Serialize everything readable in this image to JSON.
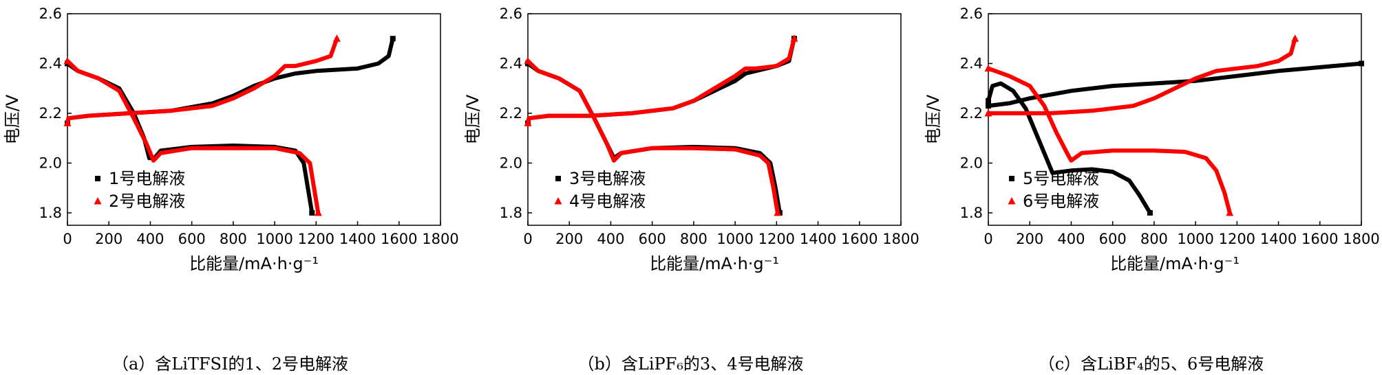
{
  "chart_data": [
    {
      "type": "line",
      "caption": "（a）含LiTFSI的1、2号电解液",
      "xlabel": "比能量/mA·h·g⁻¹",
      "ylabel": "电压/V",
      "xlim": [
        0,
        1800
      ],
      "ylim": [
        1.75,
        2.6
      ],
      "xticks": [
        "0",
        "200",
        "400",
        "600",
        "800",
        "1000",
        "1200",
        "1400",
        "1600",
        "1800"
      ],
      "yticks": [
        "1.8",
        "2.0",
        "2.2",
        "2.4",
        "2.6"
      ],
      "legend_position": "lower-left",
      "series": [
        {
          "name": "1号电解液",
          "color": "#000000",
          "marker": "square",
          "discharge": [
            [
              0,
              2.4
            ],
            [
              50,
              2.37
            ],
            [
              150,
              2.34
            ],
            [
              250,
              2.3
            ],
            [
              320,
              2.2
            ],
            [
              370,
              2.1
            ],
            [
              395,
              2.02
            ],
            [
              420,
              2.02
            ],
            [
              450,
              2.05
            ],
            [
              600,
              2.065
            ],
            [
              800,
              2.07
            ],
            [
              1000,
              2.065
            ],
            [
              1100,
              2.05
            ],
            [
              1140,
              2.0
            ],
            [
              1160,
              1.9
            ],
            [
              1180,
              1.8
            ]
          ],
          "charge": [
            [
              0,
              2.16
            ],
            [
              5,
              2.18
            ],
            [
              100,
              2.19
            ],
            [
              300,
              2.2
            ],
            [
              500,
              2.21
            ],
            [
              700,
              2.24
            ],
            [
              800,
              2.27
            ],
            [
              900,
              2.31
            ],
            [
              1000,
              2.34
            ],
            [
              1100,
              2.36
            ],
            [
              1200,
              2.37
            ],
            [
              1400,
              2.38
            ],
            [
              1500,
              2.4
            ],
            [
              1550,
              2.43
            ],
            [
              1570,
              2.5
            ]
          ]
        },
        {
          "name": "2号电解液",
          "color": "#ff0000",
          "marker": "triangle",
          "discharge": [
            [
              0,
              2.41
            ],
            [
              50,
              2.37
            ],
            [
              150,
              2.34
            ],
            [
              250,
              2.29
            ],
            [
              320,
              2.18
            ],
            [
              380,
              2.08
            ],
            [
              415,
              2.01
            ],
            [
              450,
              2.04
            ],
            [
              600,
              2.06
            ],
            [
              800,
              2.06
            ],
            [
              1000,
              2.06
            ],
            [
              1120,
              2.04
            ],
            [
              1170,
              2.0
            ],
            [
              1190,
              1.9
            ],
            [
              1210,
              1.8
            ]
          ],
          "charge": [
            [
              0,
              2.16
            ],
            [
              5,
              2.18
            ],
            [
              100,
              2.19
            ],
            [
              300,
              2.2
            ],
            [
              500,
              2.21
            ],
            [
              700,
              2.23
            ],
            [
              800,
              2.26
            ],
            [
              900,
              2.3
            ],
            [
              1000,
              2.35
            ],
            [
              1050,
              2.39
            ],
            [
              1100,
              2.39
            ],
            [
              1200,
              2.41
            ],
            [
              1270,
              2.43
            ],
            [
              1300,
              2.5
            ]
          ]
        }
      ]
    },
    {
      "type": "line",
      "caption": "（b）含LiPF₆的3、4号电解液",
      "xlabel": "比能量/mA·h·g⁻¹",
      "ylabel": "电压/V",
      "xlim": [
        0,
        1800
      ],
      "ylim": [
        1.75,
        2.6
      ],
      "xticks": [
        "0",
        "200",
        "400",
        "600",
        "800",
        "1000",
        "1200",
        "1400",
        "1600",
        "1800"
      ],
      "yticks": [
        "1.8",
        "2.0",
        "2.2",
        "2.4",
        "2.6"
      ],
      "legend_position": "lower-left",
      "series": [
        {
          "name": "3号电解液",
          "color": "#000000",
          "marker": "square",
          "discharge": [
            [
              0,
              2.4
            ],
            [
              50,
              2.37
            ],
            [
              150,
              2.34
            ],
            [
              250,
              2.29
            ],
            [
              320,
              2.18
            ],
            [
              380,
              2.08
            ],
            [
              415,
              2.02
            ],
            [
              450,
              2.04
            ],
            [
              600,
              2.06
            ],
            [
              800,
              2.065
            ],
            [
              1000,
              2.06
            ],
            [
              1120,
              2.04
            ],
            [
              1170,
              2.0
            ],
            [
              1195,
              1.9
            ],
            [
              1215,
              1.8
            ]
          ],
          "charge": [
            [
              0,
              2.16
            ],
            [
              5,
              2.18
            ],
            [
              100,
              2.19
            ],
            [
              300,
              2.19
            ],
            [
              500,
              2.2
            ],
            [
              700,
              2.22
            ],
            [
              800,
              2.25
            ],
            [
              900,
              2.29
            ],
            [
              1000,
              2.33
            ],
            [
              1050,
              2.36
            ],
            [
              1100,
              2.37
            ],
            [
              1200,
              2.39
            ],
            [
              1260,
              2.41
            ],
            [
              1285,
              2.5
            ]
          ]
        },
        {
          "name": "4号电解液",
          "color": "#ff0000",
          "marker": "triangle",
          "discharge": [
            [
              0,
              2.41
            ],
            [
              50,
              2.37
            ],
            [
              150,
              2.34
            ],
            [
              250,
              2.29
            ],
            [
              320,
              2.18
            ],
            [
              380,
              2.08
            ],
            [
              415,
              2.01
            ],
            [
              450,
              2.04
            ],
            [
              600,
              2.06
            ],
            [
              800,
              2.06
            ],
            [
              1000,
              2.055
            ],
            [
              1120,
              2.03
            ],
            [
              1160,
              2.0
            ],
            [
              1185,
              1.9
            ],
            [
              1205,
              1.8
            ]
          ],
          "charge": [
            [
              0,
              2.16
            ],
            [
              5,
              2.18
            ],
            [
              100,
              2.19
            ],
            [
              300,
              2.19
            ],
            [
              500,
              2.2
            ],
            [
              700,
              2.22
            ],
            [
              800,
              2.25
            ],
            [
              900,
              2.3
            ],
            [
              1000,
              2.35
            ],
            [
              1050,
              2.38
            ],
            [
              1100,
              2.38
            ],
            [
              1200,
              2.39
            ],
            [
              1260,
              2.42
            ],
            [
              1285,
              2.5
            ]
          ]
        }
      ]
    },
    {
      "type": "line",
      "caption": "（c）含LiBF₄的5、6号电解液",
      "xlabel": "比能量/mA·h·g⁻¹",
      "ylabel": "电压/V",
      "xlim": [
        0,
        1800
      ],
      "ylim": [
        1.75,
        2.6
      ],
      "xticks": [
        "0",
        "200",
        "400",
        "600",
        "800",
        "1000",
        "1200",
        "1400",
        "1600",
        "1800"
      ],
      "yticks": [
        "1.8",
        "2.0",
        "2.2",
        "2.4",
        "2.6"
      ],
      "legend_position": "lower-left",
      "series": [
        {
          "name": "5号电解液",
          "color": "#000000",
          "marker": "square",
          "discharge": [
            [
              0,
              2.25
            ],
            [
              20,
              2.31
            ],
            [
              60,
              2.32
            ],
            [
              120,
              2.29
            ],
            [
              180,
              2.22
            ],
            [
              240,
              2.1
            ],
            [
              290,
              2.0
            ],
            [
              310,
              1.96
            ],
            [
              400,
              1.97
            ],
            [
              500,
              1.975
            ],
            [
              600,
              1.965
            ],
            [
              680,
              1.93
            ],
            [
              730,
              1.87
            ],
            [
              780,
              1.8
            ]
          ],
          "charge": [
            [
              0,
              2.23
            ],
            [
              100,
              2.24
            ],
            [
              200,
              2.26
            ],
            [
              400,
              2.29
            ],
            [
              600,
              2.31
            ],
            [
              800,
              2.32
            ],
            [
              1000,
              2.33
            ],
            [
              1200,
              2.35
            ],
            [
              1400,
              2.37
            ],
            [
              1600,
              2.385
            ],
            [
              1800,
              2.4
            ]
          ]
        },
        {
          "name": "6号电解液",
          "color": "#ff0000",
          "marker": "triangle",
          "discharge": [
            [
              0,
              2.38
            ],
            [
              100,
              2.35
            ],
            [
              200,
              2.31
            ],
            [
              270,
              2.23
            ],
            [
              330,
              2.12
            ],
            [
              380,
              2.04
            ],
            [
              400,
              2.01
            ],
            [
              450,
              2.04
            ],
            [
              600,
              2.05
            ],
            [
              800,
              2.05
            ],
            [
              950,
              2.045
            ],
            [
              1050,
              2.02
            ],
            [
              1100,
              1.97
            ],
            [
              1140,
              1.88
            ],
            [
              1165,
              1.8
            ]
          ],
          "charge": [
            [
              0,
              2.2
            ],
            [
              100,
              2.2
            ],
            [
              300,
              2.2
            ],
            [
              500,
              2.21
            ],
            [
              700,
              2.23
            ],
            [
              800,
              2.26
            ],
            [
              900,
              2.3
            ],
            [
              1000,
              2.34
            ],
            [
              1100,
              2.37
            ],
            [
              1200,
              2.38
            ],
            [
              1300,
              2.39
            ],
            [
              1400,
              2.41
            ],
            [
              1460,
              2.44
            ],
            [
              1480,
              2.5
            ]
          ]
        }
      ]
    }
  ]
}
